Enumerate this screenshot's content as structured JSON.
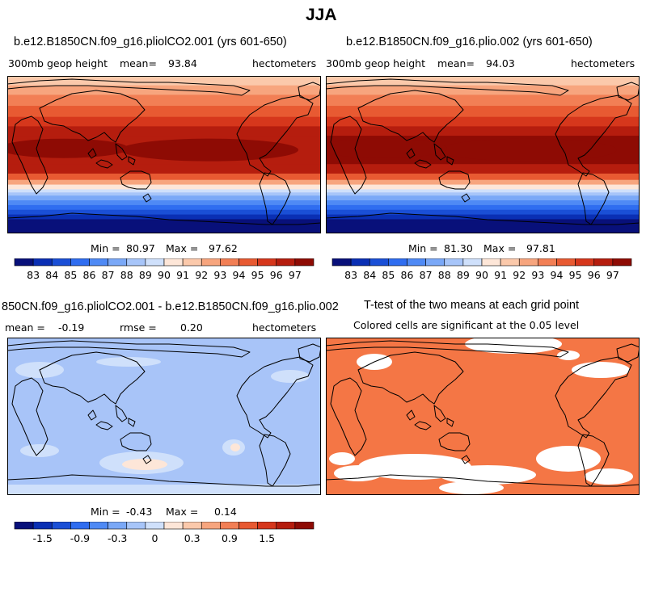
{
  "title": "JJA",
  "colors": {
    "blues": [
      "#08107a",
      "#0a2fb4",
      "#1a4fd6",
      "#2f6df0",
      "#4f8af5",
      "#7aa8f7",
      "#a7c5f9",
      "#cfe0fb"
    ],
    "reds": [
      "#fde6d8",
      "#fbc9ab",
      "#f7a57e",
      "#f27f55",
      "#e85a32",
      "#d6371c",
      "#b51d0e",
      "#8e0b04"
    ],
    "sig": "#f47645",
    "map_bg": "#ffffff"
  },
  "chart_data": [
    {
      "type": "heatmap",
      "title": "b.e12.B1850CN.f09_g16.pliolCO2.001 (yrs 601-650)",
      "left_label": "300mb geop height",
      "mean_label": "mean=",
      "mean_value": "93.84",
      "units": "hectometers",
      "min_label": "Min =",
      "min_value": "80.97",
      "max_label": "Max =",
      "max_value": "97.62",
      "colorbar_ticks": [
        "83",
        "84",
        "85",
        "86",
        "87",
        "88",
        "89",
        "90",
        "91",
        "92",
        "93",
        "94",
        "95",
        "96",
        "97"
      ]
    },
    {
      "type": "heatmap",
      "title": "b.e12.B1850CN.f09_g16.plio.002 (yrs 601-650)",
      "left_label": "300mb geop height",
      "mean_label": "mean=",
      "mean_value": "94.03",
      "units": "hectometers",
      "min_label": "Min =",
      "min_value": "81.30",
      "max_label": "Max =",
      "max_value": "97.81",
      "colorbar_ticks": [
        "83",
        "84",
        "85",
        "86",
        "87",
        "88",
        "89",
        "90",
        "91",
        "92",
        "93",
        "94",
        "95",
        "96",
        "97"
      ]
    },
    {
      "type": "heatmap",
      "title": "850CN.f09_g16.pliolCO2.001 - b.e12.B1850CN.f09_g16.plio.002",
      "mean_label": "mean =",
      "mean_value": "-0.19",
      "rmse_label": "rmse =",
      "rmse_value": "0.20",
      "units": "hectometers",
      "min_label": "Min =",
      "min_value": "-0.43",
      "max_label": "Max =",
      "max_value": "0.14",
      "colorbar_ticks": [
        "-1.5",
        "-0.9",
        "-0.3",
        "0",
        "0.3",
        "0.9",
        "1.5"
      ]
    },
    {
      "type": "heatmap",
      "title": "T-test of the two means at each grid point",
      "subtitle": "Colored cells are significant at the 0.05 level"
    }
  ]
}
